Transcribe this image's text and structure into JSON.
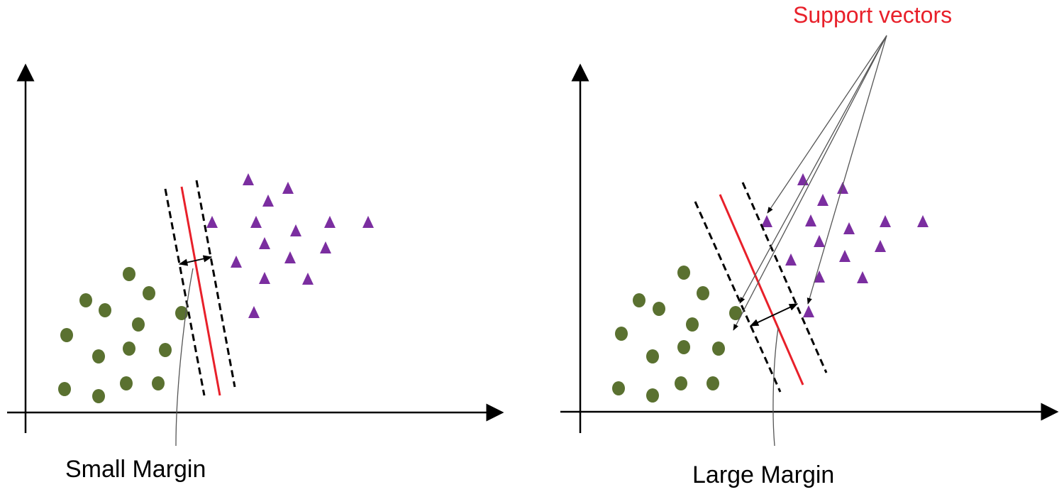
{
  "colors": {
    "axis": "#000000",
    "circle_fill": "#5a7130",
    "triangle_fill": "#7b2ea0",
    "hyperplane": "#e8202a",
    "margin_line": "#000000",
    "support_label": "#e8202a",
    "leader_line": "#555555"
  },
  "left_panel": {
    "caption": "Small Margin"
  },
  "right_panel": {
    "caption": "Large Margin"
  },
  "support_vectors_label": "Support vectors",
  "icons": {
    "class_a_marker": "filled-circle",
    "class_b_marker": "filled-triangle"
  }
}
